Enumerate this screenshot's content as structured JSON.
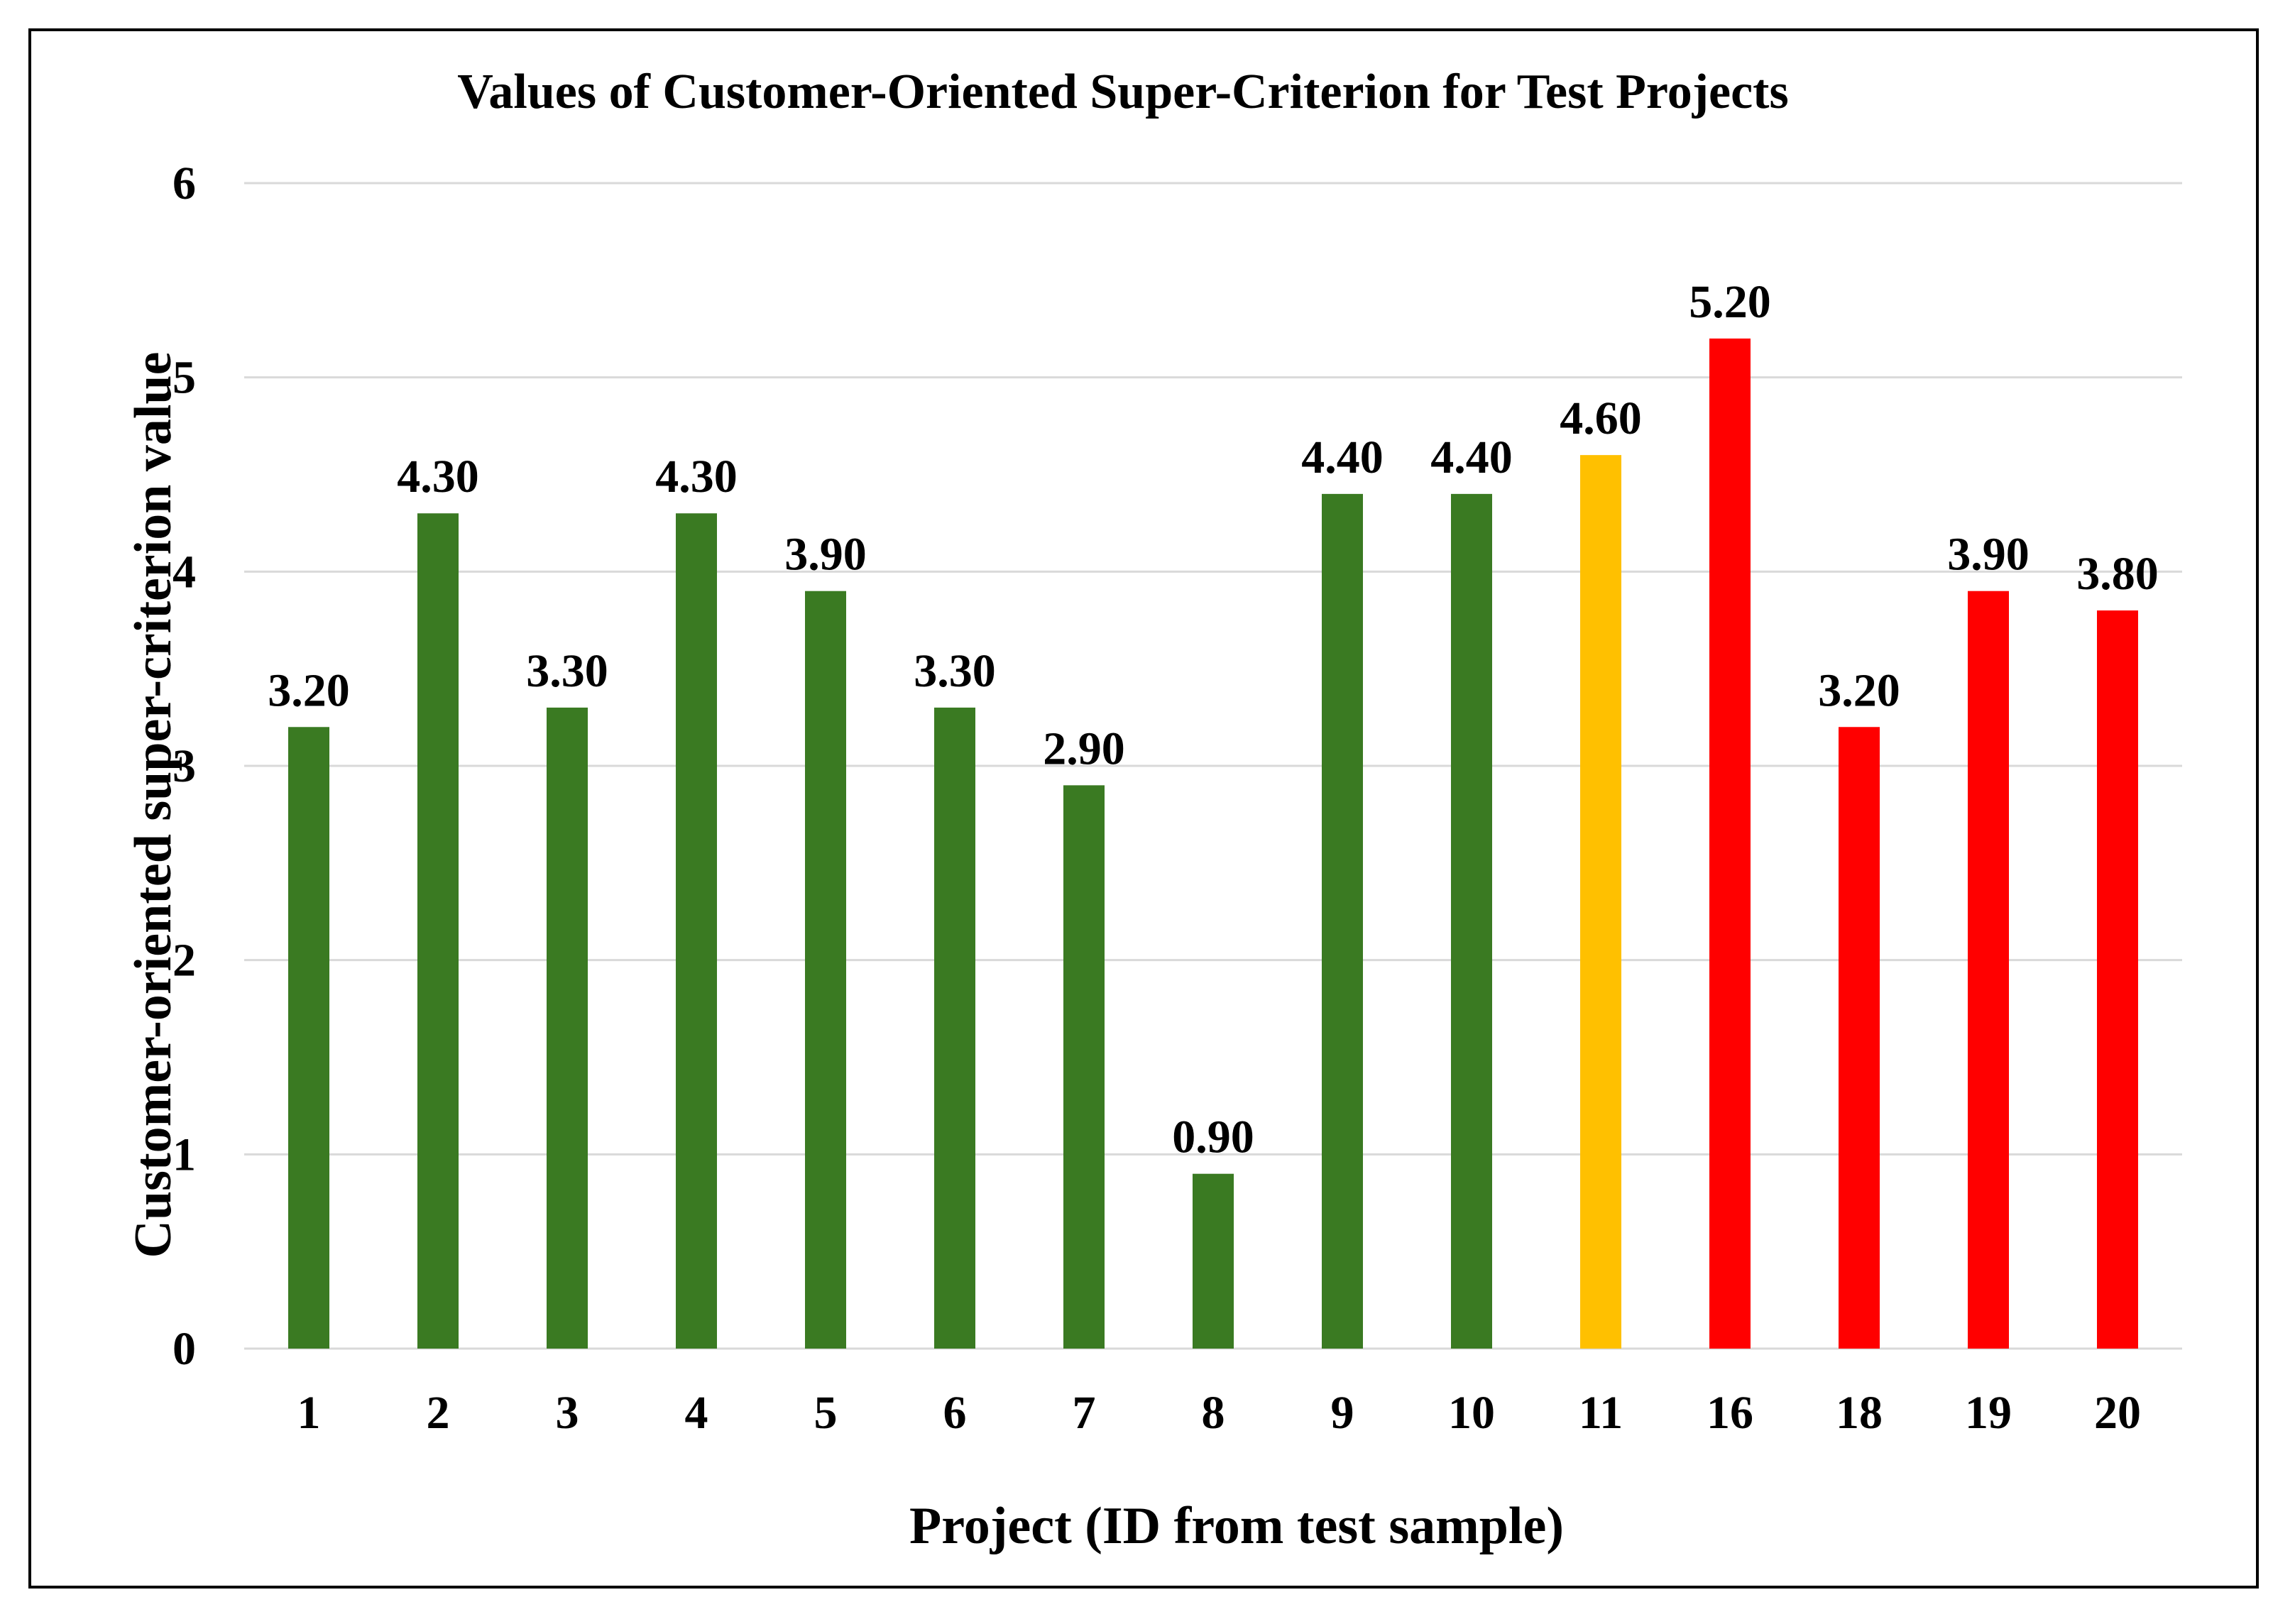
{
  "chart_data": {
    "type": "bar",
    "title": "Values of Customer-Oriented Super-Criterion for Test Projects",
    "xlabel": "Project (ID from test sample)",
    "ylabel": "Customer-oriented super-criterion value",
    "categories": [
      "1",
      "2",
      "3",
      "4",
      "5",
      "6",
      "7",
      "8",
      "9",
      "10",
      "11",
      "16",
      "18",
      "19",
      "20"
    ],
    "values": [
      3.2,
      4.3,
      3.3,
      4.3,
      3.9,
      3.3,
      2.9,
      0.9,
      4.4,
      4.4,
      4.6,
      5.2,
      3.2,
      3.9,
      3.8
    ],
    "data_labels": [
      "3.20",
      "4.30",
      "3.30",
      "4.30",
      "3.90",
      "3.30",
      "2.90",
      "0.90",
      "4.40",
      "4.40",
      "4.60",
      "5.20",
      "3.20",
      "3.90",
      "3.80"
    ],
    "bar_colors": [
      "#3a7a22",
      "#3a7a22",
      "#3a7a22",
      "#3a7a22",
      "#3a7a22",
      "#3a7a22",
      "#3a7a22",
      "#3a7a22",
      "#3a7a22",
      "#3a7a22",
      "#ffc000",
      "#ff0000",
      "#ff0000",
      "#ff0000",
      "#ff0000"
    ],
    "ylim": [
      0,
      6
    ],
    "yticks": [
      "0",
      "1",
      "2",
      "3",
      "4",
      "5",
      "6"
    ],
    "grid": true,
    "legend": "none"
  }
}
